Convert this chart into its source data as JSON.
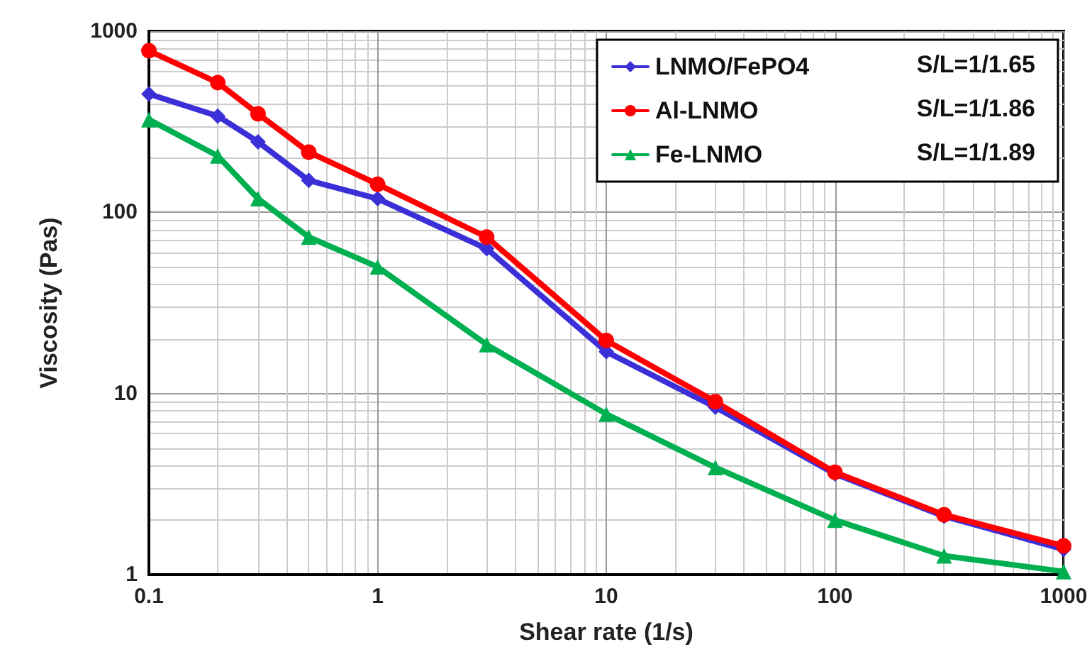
{
  "chart_data": {
    "type": "line",
    "xlabel": "Shear rate (1/s)",
    "ylabel": "Viscosity (Pas)",
    "x": [
      0.1,
      0.2,
      0.3,
      0.5,
      1,
      3,
      10,
      30,
      100,
      300,
      1000
    ],
    "series": [
      {
        "name": "LNMO/FePO4",
        "color": "#3b2fd8",
        "marker": "diamond",
        "values": [
          450,
          340,
          245,
          150,
          119,
          63,
          17,
          8.4,
          3.6,
          2.1,
          1.38
        ]
      },
      {
        "name": "Al-LNMO",
        "color": "#ff0000",
        "marker": "circle",
        "values": [
          780,
          520,
          350,
          215,
          143,
          73,
          19.6,
          9.0,
          3.67,
          2.14,
          1.44
        ]
      },
      {
        "name": "Fe-LNMO",
        "color": "#00b050",
        "marker": "triangle",
        "values": [
          325,
          205,
          119,
          73,
          50,
          18.6,
          7.7,
          3.9,
          2.0,
          1.27,
          1.04
        ]
      }
    ],
    "log": "xy",
    "xlim": [
      0.1,
      1000
    ],
    "xticks": [
      0.1,
      1,
      10,
      100,
      1000
    ],
    "ylim": [
      1,
      1000
    ],
    "yticks": [
      1,
      10,
      100,
      1000
    ],
    "grid": true,
    "legend": "top right",
    "line_style": "solid",
    "annotations": [
      "S/L=1/1.65",
      "S/L=1/1.86",
      "S/L=1/1.89"
    ]
  }
}
